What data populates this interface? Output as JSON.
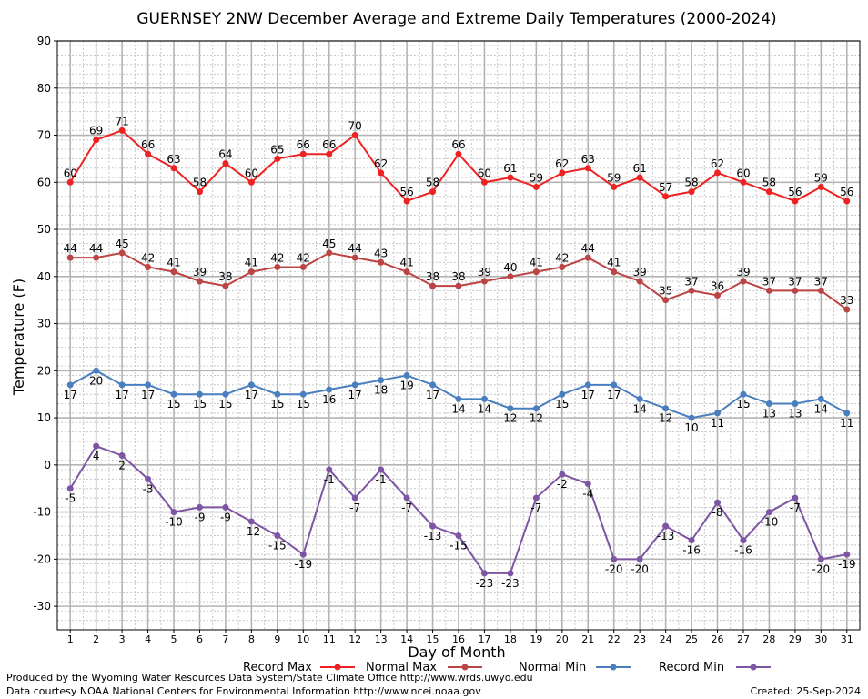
{
  "chart_data": {
    "type": "line",
    "title": "GUERNSEY 2NW December Average and Extreme Daily Temperatures (2000-2024)",
    "xlabel": "Day of Month",
    "ylabel": "Temperature (F)",
    "ylim": [
      -35,
      90
    ],
    "y_ticks": [
      90,
      80,
      70,
      60,
      50,
      40,
      30,
      20,
      10,
      0,
      -10,
      -20,
      -30
    ],
    "x": [
      1,
      2,
      3,
      4,
      5,
      6,
      7,
      8,
      9,
      10,
      11,
      12,
      13,
      14,
      15,
      16,
      17,
      18,
      19,
      20,
      21,
      22,
      23,
      24,
      25,
      26,
      27,
      28,
      29,
      30,
      31
    ],
    "grid": true,
    "legend_position": "bottom",
    "series": [
      {
        "name": "Record Max",
        "color": "#ee2222",
        "label_position": "above",
        "values": [
          60,
          69,
          71,
          66,
          63,
          58,
          64,
          60,
          65,
          66,
          66,
          70,
          62,
          56,
          58,
          66,
          60,
          61,
          59,
          62,
          63,
          59,
          61,
          57,
          58,
          62,
          60,
          58,
          56,
          59,
          56
        ]
      },
      {
        "name": "Normal Max",
        "color": "#bb4444",
        "label_position": "above",
        "values": [
          44,
          44,
          45,
          42,
          41,
          39,
          38,
          41,
          42,
          42,
          45,
          44,
          43,
          41,
          38,
          38,
          39,
          40,
          41,
          42,
          44,
          41,
          39,
          35,
          37,
          36,
          39,
          37,
          37,
          37,
          33
        ]
      },
      {
        "name": "Normal Min",
        "color": "#4a7fbf",
        "label_position": "below",
        "values": [
          17,
          20,
          17,
          17,
          15,
          15,
          15,
          17,
          15,
          15,
          16,
          17,
          18,
          19,
          17,
          14,
          14,
          12,
          12,
          15,
          17,
          17,
          14,
          12,
          10,
          11,
          15,
          13,
          13,
          14,
          11
        ]
      },
      {
        "name": "Record Min",
        "color": "#7d55a3",
        "label_position": "below",
        "values": [
          -5,
          4,
          2,
          -3,
          -10,
          -9,
          -9,
          -12,
          -15,
          -19,
          -1,
          -7,
          -1,
          -7,
          -13,
          -15,
          -23,
          -23,
          -7,
          -2,
          -4,
          -20,
          -20,
          -13,
          -16,
          -8,
          -16,
          -10,
          -7,
          -20,
          -19
        ]
      }
    ]
  },
  "credits": {
    "produced_by": "Produced by the Wyoming Water Resources Data System/State Climate Office http://www.wrds.uwyo.edu",
    "data_courtesy": "Data courtesy NOAA National Centers for Environmental Information http://www.ncei.noaa.gov",
    "created": "Created:  25-Sep-2024"
  }
}
